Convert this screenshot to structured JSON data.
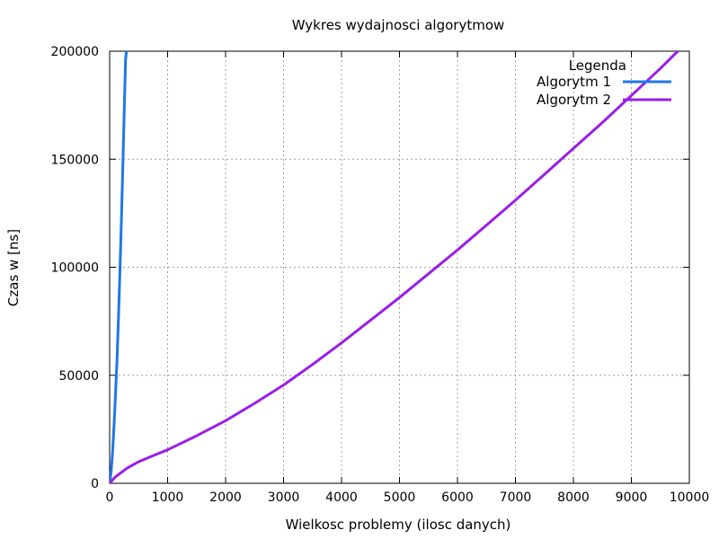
{
  "chart_data": {
    "type": "line",
    "title": "Wykres wydajnosci algorytmow",
    "xlabel": "Wielkosc problemy (ilosc danych)",
    "ylabel": "Czas w [ns]",
    "xlim": [
      0,
      10000
    ],
    "ylim": [
      0,
      200000
    ],
    "xticks": [
      0,
      1000,
      2000,
      3000,
      4000,
      5000,
      6000,
      7000,
      8000,
      9000,
      10000
    ],
    "yticks": [
      0,
      50000,
      100000,
      150000,
      200000
    ],
    "grid": true,
    "legend": {
      "title": "Legenda",
      "position": "top-right"
    },
    "series": [
      {
        "name": "Algorytm 1",
        "color": "#1f77e8",
        "x": [
          0,
          25,
          50,
          75,
          100,
          125,
          150,
          175,
          200,
          225,
          250,
          275,
          290
        ],
        "y": [
          0,
          5000,
          14000,
          26000,
          40000,
          56000,
          75000,
          96000,
          119000,
          144000,
          170000,
          196000,
          200000
        ]
      },
      {
        "name": "Algorytm 2",
        "color": "#9a1ee8",
        "x": [
          0,
          100,
          200,
          300,
          400,
          500,
          750,
          1000,
          1500,
          2000,
          2500,
          3000,
          3500,
          4000,
          4500,
          5000,
          5500,
          6000,
          6500,
          7000,
          7500,
          8000,
          8500,
          9000,
          9500,
          9800
        ],
        "y": [
          0,
          3000,
          5000,
          7000,
          8500,
          10000,
          12800,
          15500,
          22000,
          29000,
          37000,
          45500,
          55000,
          65000,
          75500,
          86000,
          97000,
          108000,
          119500,
          131000,
          143000,
          155000,
          167000,
          179500,
          192000,
          200000
        ]
      }
    ]
  }
}
